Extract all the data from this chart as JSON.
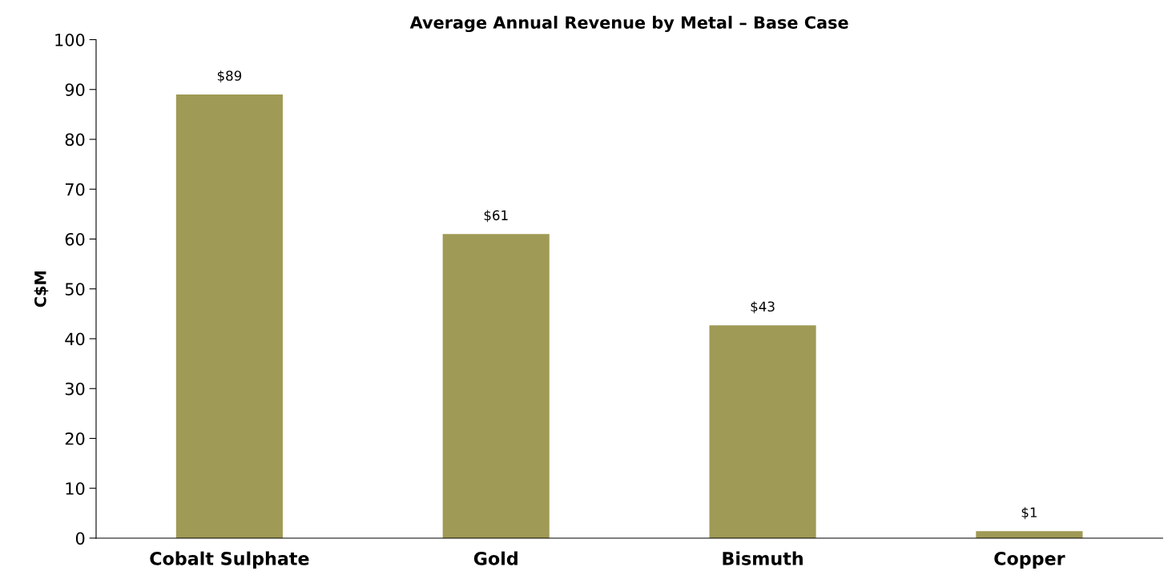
{
  "chart_data": {
    "type": "bar",
    "title": "Average Annual Revenue by Metal – Base Case",
    "ylabel": "C$M",
    "categories": [
      "Cobalt Sulphate",
      "Gold",
      "Bismuth",
      "Copper"
    ],
    "values": [
      89,
      61,
      42.7,
      1.4
    ],
    "value_labels": [
      "$89",
      "$61",
      "$43",
      "$1"
    ],
    "color": "#9f9a55",
    "ylim": [
      0,
      100
    ],
    "yticks": [
      0,
      10,
      20,
      30,
      40,
      50,
      60,
      70,
      80,
      90,
      100
    ],
    "grid": false,
    "legend": false
  }
}
